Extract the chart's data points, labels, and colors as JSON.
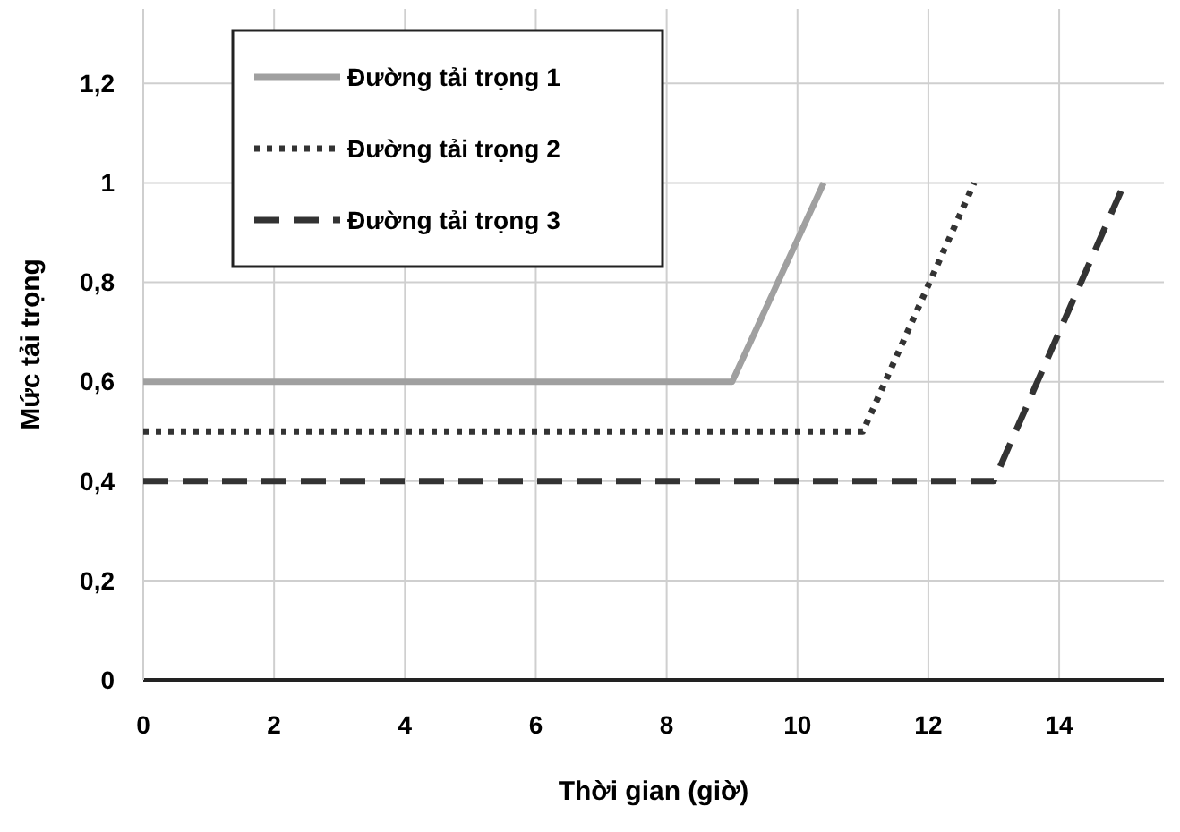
{
  "chart_data": {
    "type": "line",
    "xlabel": "Thời gian (giờ)",
    "ylabel": "Mức tải trọng",
    "xlim": [
      0,
      15.6
    ],
    "xticks": [
      0,
      2,
      4,
      6,
      8,
      10,
      12,
      14
    ],
    "ylim": [
      0,
      1.35
    ],
    "yticks": [
      0,
      {
        "value": 0.2,
        "label": "0,2"
      },
      {
        "value": 0.4,
        "label": "0,4"
      },
      {
        "value": 0.6,
        "label": "0,6"
      },
      {
        "value": 0.8,
        "label": "0,8"
      },
      1,
      {
        "value": 1.2,
        "label": "1,2"
      }
    ],
    "grid": true,
    "legend": "top left",
    "series": [
      {
        "name": "Đường tải trọng 1",
        "color": "#a0a0a0",
        "line_style": "solid",
        "x": [
          0,
          9,
          10.4
        ],
        "values": [
          0.6,
          0.6,
          1
        ]
      },
      {
        "name": "Đường tải trọng 2",
        "color": "#333333",
        "line_style": "dotted",
        "x": [
          0,
          11,
          12.7
        ],
        "values": [
          0.5,
          0.5,
          1
        ]
      },
      {
        "name": "Đường tải trọng 3",
        "color": "#333333",
        "line_style": "dashed",
        "x": [
          0,
          13,
          15
        ],
        "values": [
          0.4,
          0.4,
          1
        ]
      }
    ]
  }
}
